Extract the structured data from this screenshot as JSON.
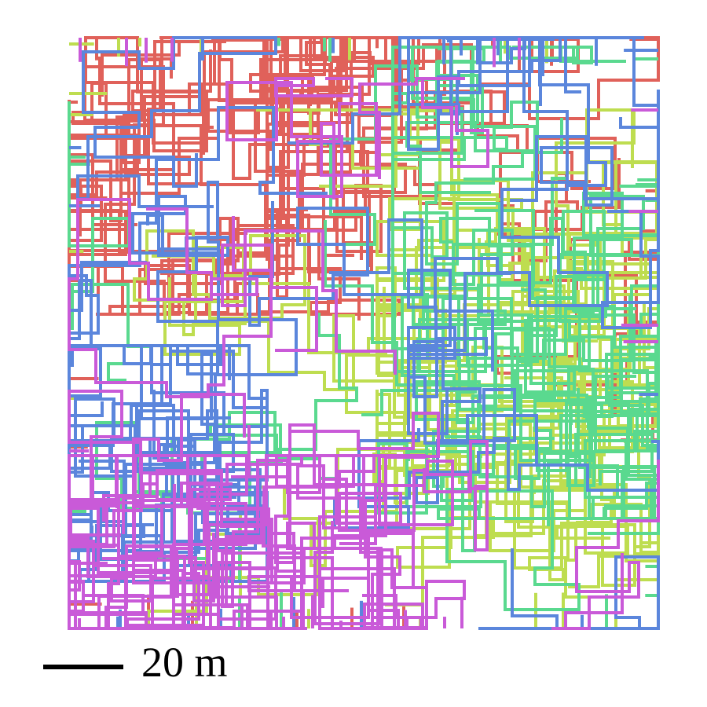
{
  "scalebar": {
    "label": "20 m"
  },
  "paths": [
    {
      "name": "red-path",
      "color": "#e0615a"
    },
    {
      "name": "lime-path",
      "color": "#bedd50"
    },
    {
      "name": "green-path",
      "color": "#5ad98f"
    },
    {
      "name": "blue-path",
      "color": "#5b86dc"
    },
    {
      "name": "magenta-path",
      "color": "#c95ad8"
    }
  ]
}
